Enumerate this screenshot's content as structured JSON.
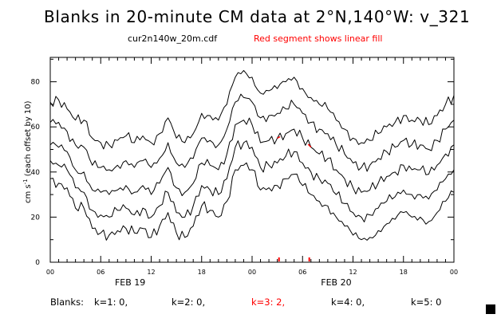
{
  "chart_data": {
    "type": "line",
    "title": "Blanks in 20-minute CM data at 2°N,140°W: v_321",
    "filename": "cur2n140w_20m.cdf",
    "fill_note": "Red segment shows linear fill",
    "ylabel_main": "cm s",
    "ylabel_exp": "-1",
    "ylabel_note": " (each offset by 10)",
    "ylim": [
      0,
      90
    ],
    "yticks": [
      0,
      20,
      40,
      60,
      80
    ],
    "xlim_hours": [
      0,
      48
    ],
    "xtick_labels": [
      "00",
      "06",
      "12",
      "18",
      "00",
      "06",
      "12",
      "18",
      "00"
    ],
    "xtick_hours": [
      0,
      6,
      12,
      18,
      24,
      30,
      36,
      42,
      48
    ],
    "date_labels": [
      {
        "text": "FEB 19",
        "hour": 9.5
      },
      {
        "text": "FEB 20",
        "hour": 34
      }
    ],
    "x_hours": [
      0,
      1,
      2,
      3,
      4,
      5,
      6,
      7,
      8,
      9,
      10,
      11,
      12,
      13,
      14,
      15,
      16,
      17,
      18,
      19,
      20,
      21,
      22,
      23,
      24,
      25,
      26,
      27,
      28,
      29,
      30,
      31,
      32,
      33,
      34,
      35,
      36,
      37,
      38,
      39,
      40,
      41,
      42,
      43,
      44,
      45,
      46,
      47,
      48
    ],
    "series": [
      {
        "name": "k=1",
        "values": [
          37,
          35,
          33,
          24,
          24,
          15,
          13,
          12,
          14,
          15,
          13,
          15,
          11,
          16,
          22,
          13,
          11,
          16,
          25,
          23,
          20,
          27,
          41,
          43,
          41,
          32,
          33,
          34,
          37,
          39,
          34,
          30,
          27,
          25,
          20,
          16,
          12,
          10,
          11,
          14,
          17,
          19,
          22,
          20,
          20,
          18,
          22,
          27,
          31
        ]
      },
      {
        "name": "k=2",
        "values": [
          45,
          43,
          41,
          33,
          31,
          23,
          21,
          20,
          23,
          24,
          21,
          24,
          20,
          25,
          31,
          22,
          20,
          25,
          34,
          32,
          30,
          37,
          51,
          53,
          51,
          42,
          43,
          44,
          47,
          49,
          44,
          40,
          37,
          35,
          30,
          26,
          22,
          20,
          21,
          24,
          27,
          29,
          32,
          30,
          30,
          28,
          32,
          37,
          41
        ]
      },
      {
        "name": "k=3",
        "values": [
          52,
          51,
          49,
          41,
          40,
          32,
          31,
          30,
          32,
          34,
          31,
          34,
          30,
          35,
          42,
          33,
          31,
          35,
          44,
          43,
          41,
          48,
          61,
          63,
          61,
          53,
          54,
          55,
          57,
          59,
          55,
          51,
          48,
          46,
          41,
          37,
          33,
          31,
          32,
          35,
          38,
          40,
          43,
          41,
          41,
          39,
          43,
          48,
          52
        ]
      },
      {
        "name": "k=4",
        "values": [
          62,
          62,
          58,
          52,
          51,
          43,
          42,
          41,
          43,
          45,
          42,
          45,
          42,
          46,
          53,
          44,
          42,
          46,
          55,
          54,
          52,
          59,
          71,
          73,
          71,
          64,
          65,
          66,
          68,
          70,
          66,
          62,
          59,
          57,
          52,
          48,
          44,
          42,
          43,
          46,
          49,
          51,
          54,
          52,
          52,
          50,
          54,
          59,
          63
        ]
      },
      {
        "name": "k=5",
        "values": [
          71,
          72,
          68,
          63,
          63,
          55,
          53,
          52,
          54,
          56,
          53,
          56,
          53,
          57,
          64,
          55,
          53,
          57,
          66,
          65,
          63,
          70,
          82,
          85,
          82,
          75,
          76,
          77,
          80,
          82,
          77,
          73,
          70,
          68,
          63,
          59,
          55,
          53,
          54,
          57,
          60,
          62,
          65,
          63,
          63,
          61,
          65,
          70,
          74
        ]
      }
    ],
    "fill_segments": [
      {
        "series": "k=3",
        "hour_start": 27,
        "hour_end": 27.33
      },
      {
        "series": "k=3",
        "hour_start": 30.67,
        "hour_end": 31
      }
    ],
    "fill_markers_hours": [
      27.2,
      30.8
    ],
    "blanks_prefix": "Blanks:",
    "blanks": [
      {
        "label": "k=1: 0,",
        "color": "#000000"
      },
      {
        "label": "k=2: 0,",
        "color": "#000000"
      },
      {
        "label": "k=3: 2,",
        "color": "#ff0000"
      },
      {
        "label": "k=4: 0,",
        "color": "#000000"
      },
      {
        "label": "k=5: 0",
        "color": "#000000"
      }
    ],
    "colors": {
      "line": "#000000",
      "accent": "#ff0000"
    }
  }
}
